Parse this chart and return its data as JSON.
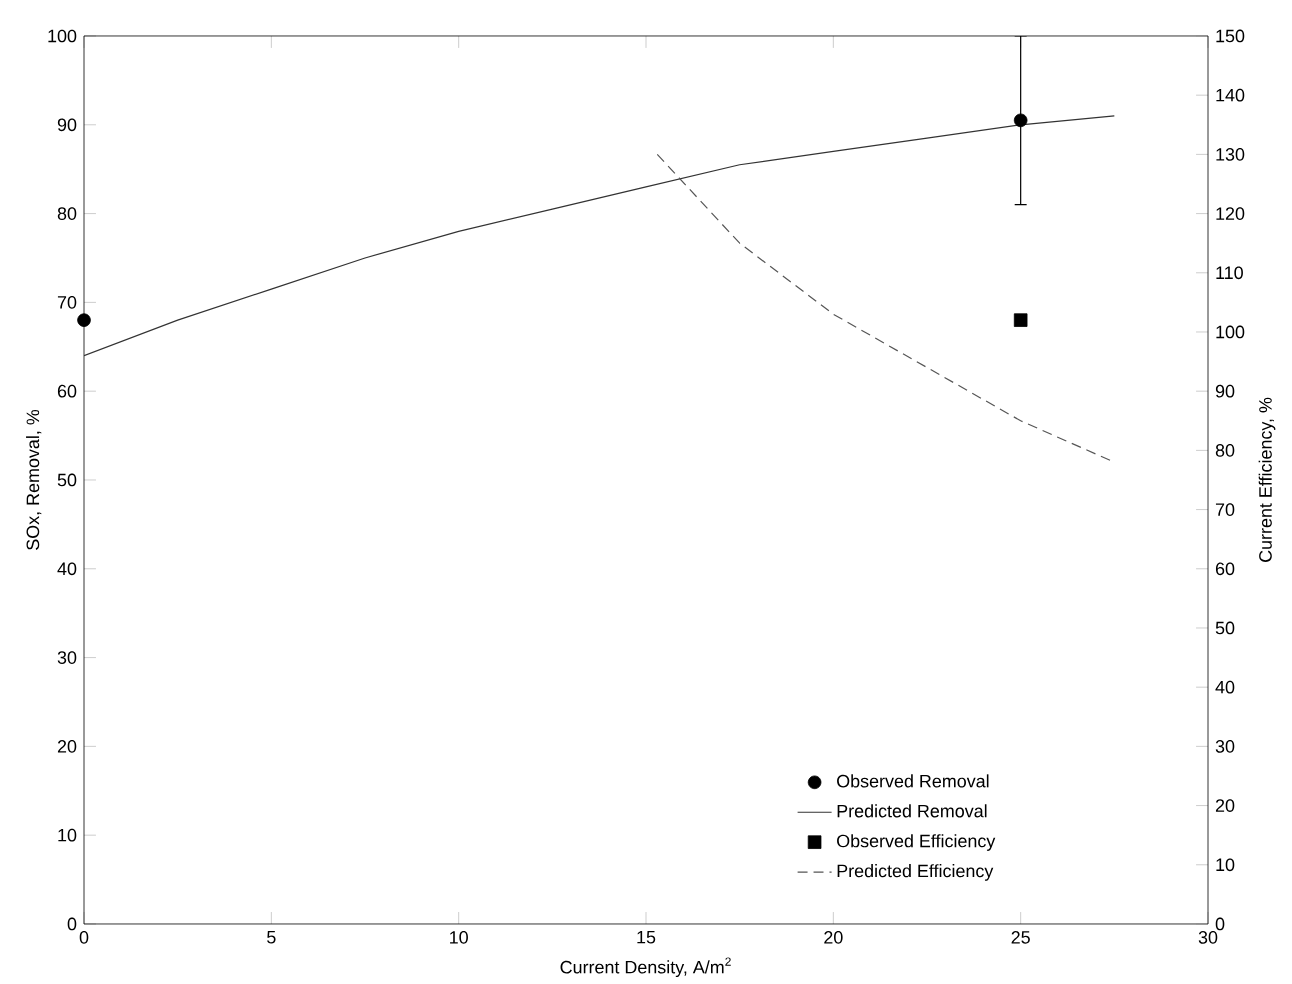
{
  "chart_data": {
    "type": "line",
    "xlabel": "Current Density, A/m$^{2}$",
    "ylabel": "SOx, Removal, %",
    "y2label": "Current Efficiency, %",
    "xlim": [
      0,
      30
    ],
    "xticks": [
      0,
      5,
      10,
      15,
      20,
      25,
      30
    ],
    "ylim": [
      0,
      100
    ],
    "yticks": [
      0,
      10,
      20,
      30,
      40,
      50,
      60,
      70,
      80,
      90,
      100
    ],
    "y2lim": [
      0,
      150
    ],
    "y2ticks": [
      0,
      10,
      20,
      30,
      40,
      50,
      60,
      70,
      80,
      90,
      100,
      110,
      120,
      130,
      140,
      150
    ],
    "legend": "bottom right",
    "grid": false,
    "series": [
      {
        "name": "Observed Removal",
        "type": "scatter",
        "marker": "circle",
        "color": "#000000",
        "x": [
          0,
          25
        ],
        "values": [
          68,
          90.5
        ],
        "errors": [
          null,
          9.5
        ]
      },
      {
        "name": "Predicted Removal",
        "marker": "none",
        "line_style": "solid",
        "color": "#333333",
        "x": [
          0,
          2.5,
          5,
          7.5,
          10,
          12.5,
          15,
          17.5,
          20,
          22.5,
          25,
          27.5
        ],
        "values": [
          64,
          68,
          71.5,
          75,
          78,
          80.5,
          83,
          85.5,
          87,
          88.5,
          90,
          91
        ]
      },
      {
        "name": "Observed Efficiency",
        "type": "scatter",
        "marker": "square",
        "axis": "y2",
        "color": "#000000",
        "x": [
          25
        ],
        "values": [
          102
        ]
      },
      {
        "name": "Predicted Efficiency",
        "marker": "none",
        "line_style": "dashed",
        "axis": "y2",
        "color": "#555555",
        "x": [
          15.3,
          17.5,
          20,
          22.5,
          25,
          27.5
        ],
        "values": [
          130,
          115,
          103,
          94,
          85,
          78
        ]
      }
    ]
  }
}
